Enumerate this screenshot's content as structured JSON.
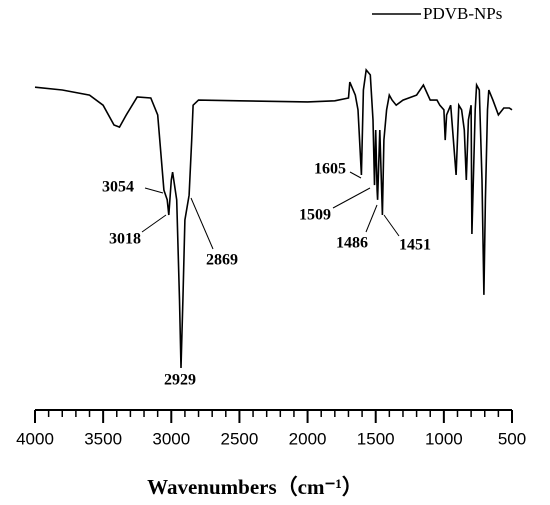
{
  "chart_data": {
    "type": "line",
    "x_label": "Wavenumbers（cm⁻¹）",
    "xlim": [
      4000,
      500
    ],
    "ylim": [
      0,
      100
    ],
    "xticks": [
      4000,
      3500,
      3000,
      2500,
      2000,
      1500,
      1000,
      500
    ],
    "xminorticks": [
      3900,
      3800,
      3700,
      3600,
      3400,
      3300,
      3200,
      3100,
      2900,
      2800,
      2700,
      2600,
      2400,
      2300,
      2200,
      2100,
      1900,
      1800,
      1700,
      1600,
      1400,
      1300,
      1200,
      1100,
      900,
      800,
      700,
      600
    ],
    "legend": "top-right",
    "series": [
      {
        "name": "PDVB-NPs",
        "color": "#000000",
        "x": [
          4000,
          3800,
          3600,
          3500,
          3420,
          3380,
          3330,
          3250,
          3150,
          3100,
          3054,
          3030,
          3018,
          3000,
          2990,
          2960,
          2940,
          2929,
          2915,
          2900,
          2869,
          2850,
          2840,
          2800,
          2500,
          2000,
          1800,
          1700,
          1690,
          1650,
          1630,
          1605,
          1590,
          1570,
          1540,
          1520,
          1509,
          1500,
          1490,
          1486,
          1470,
          1451,
          1440,
          1420,
          1400,
          1380,
          1350,
          1300,
          1200,
          1150,
          1100,
          1050,
          1030,
          1000,
          990,
          980,
          950,
          910,
          890,
          870,
          850,
          835,
          820,
          800,
          794,
          770,
          760,
          740,
          720,
          706,
          695,
          680,
          670,
          640,
          600,
          560,
          520,
          500
        ],
        "values": [
          86.9,
          86.1,
          84.7,
          81.9,
          76.4,
          75.8,
          79.2,
          84.2,
          83.9,
          79.2,
          58.3,
          55.6,
          51.4,
          61.1,
          63.3,
          55.6,
          27.8,
          8.9,
          27.8,
          50.0,
          56.9,
          72.2,
          81.9,
          83.3,
          83.1,
          82.8,
          83.1,
          83.9,
          88.3,
          84.7,
          80.6,
          62.5,
          86.1,
          91.7,
          90.3,
          77.8,
          59.7,
          75.0,
          58.3,
          55.6,
          75.0,
          51.4,
          72.2,
          80.6,
          84.7,
          83.3,
          81.9,
          83.3,
          84.7,
          87.5,
          83.3,
          83.3,
          81.9,
          80.6,
          72.2,
          79.2,
          81.9,
          62.5,
          81.9,
          80.6,
          75.0,
          61.1,
          77.8,
          81.9,
          46.1,
          80.6,
          87.5,
          86.1,
          61.1,
          29.2,
          55.6,
          80.6,
          86.1,
          83.3,
          79.2,
          81.1,
          81.1,
          80.6
        ]
      }
    ],
    "annotations": [
      "3054",
      "3018",
      "2869",
      "2929",
      "1605",
      "1509",
      "1486",
      "1451"
    ]
  }
}
